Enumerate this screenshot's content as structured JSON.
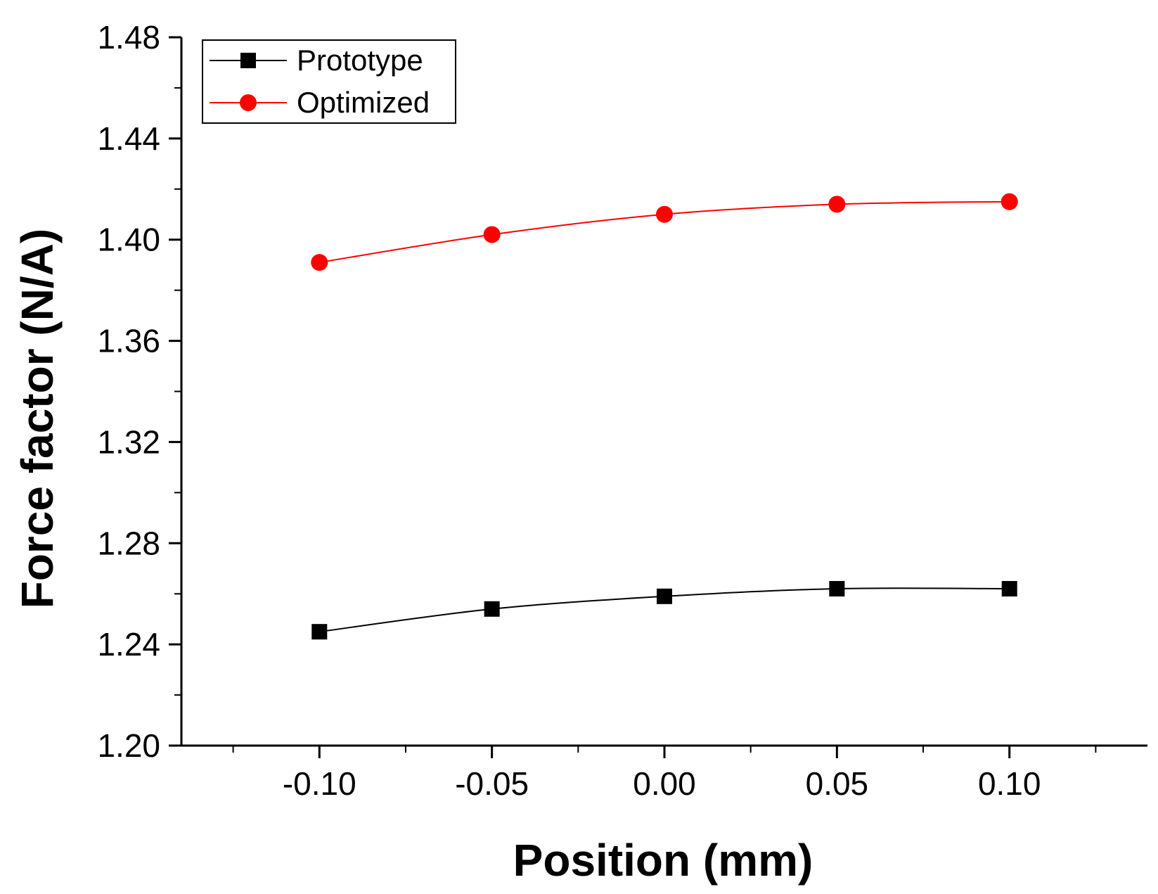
{
  "chart_data": {
    "type": "line",
    "title": "",
    "xlabel": "Position (mm)",
    "ylabel": "Force factor (N/A)",
    "xlim": [
      -0.14,
      0.14
    ],
    "ylim": [
      1.2,
      1.48
    ],
    "xticks": [
      -0.1,
      -0.05,
      0.0,
      0.05,
      0.1
    ],
    "xtick_labels": [
      "-0.10",
      "-0.05",
      "0.00",
      "0.05",
      "0.10"
    ],
    "yticks": [
      1.2,
      1.24,
      1.28,
      1.32,
      1.36,
      1.4,
      1.44,
      1.48
    ],
    "ytick_labels": [
      "1.20",
      "1.24",
      "1.28",
      "1.32",
      "1.36",
      "1.40",
      "1.44",
      "1.48"
    ],
    "grid": false,
    "legend_position": "top-left",
    "x": [
      -0.1,
      -0.05,
      0.0,
      0.05,
      0.1
    ],
    "series": [
      {
        "name": "Prototype",
        "color": "#000000",
        "marker": "square",
        "values": [
          1.245,
          1.254,
          1.259,
          1.262,
          1.262
        ]
      },
      {
        "name": "Optimized",
        "color": "#ff0000",
        "marker": "circle",
        "values": [
          1.391,
          1.402,
          1.41,
          1.414,
          1.415
        ]
      }
    ]
  }
}
